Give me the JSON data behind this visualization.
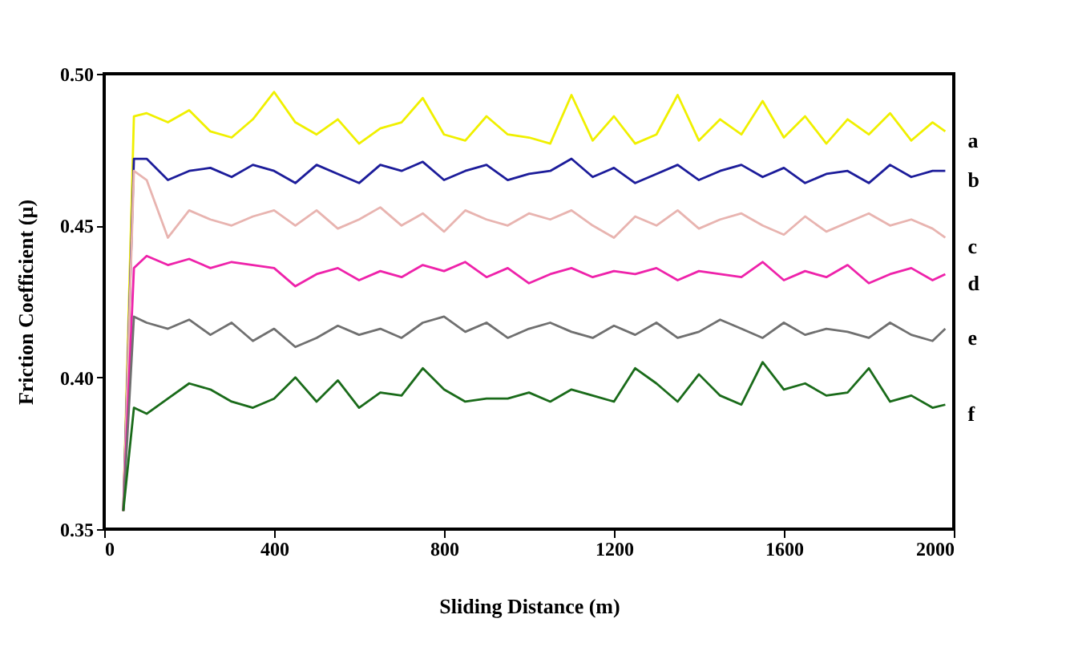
{
  "chart_data": {
    "type": "line",
    "xlabel": "Sliding Distance (m)",
    "ylabel": "Friction Coefficient (µ)",
    "xlim": [
      0,
      2000
    ],
    "ylim": [
      0.35,
      0.5
    ],
    "xticks": [
      0,
      400,
      800,
      1200,
      1600,
      2000
    ],
    "yticks": [
      0.35,
      {
        "value": 0.4,
        "label": "0.40"
      },
      0.45,
      {
        "value": 0.5,
        "label": "0.50"
      }
    ],
    "grid": false,
    "legend": false,
    "marker": "none",
    "line_style": "solid",
    "x": [
      45,
      70,
      100,
      150,
      200,
      250,
      300,
      350,
      400,
      450,
      500,
      550,
      600,
      650,
      700,
      750,
      800,
      850,
      900,
      950,
      1000,
      1050,
      1100,
      1150,
      1200,
      1250,
      1300,
      1350,
      1400,
      1450,
      1500,
      1550,
      1600,
      1650,
      1700,
      1750,
      1800,
      1850,
      1900,
      1950,
      1980
    ],
    "series": [
      {
        "name": "a",
        "color": "#f0f000",
        "values": [
          0.356,
          0.486,
          0.487,
          0.484,
          0.488,
          0.481,
          0.479,
          0.485,
          0.494,
          0.484,
          0.48,
          0.485,
          0.477,
          0.482,
          0.484,
          0.492,
          0.48,
          0.478,
          0.486,
          0.48,
          0.479,
          0.477,
          0.493,
          0.478,
          0.486,
          0.477,
          0.48,
          0.493,
          0.478,
          0.485,
          0.48,
          0.491,
          0.479,
          0.486,
          0.477,
          0.485,
          0.48,
          0.487,
          0.478,
          0.484,
          0.481
        ]
      },
      {
        "name": "b",
        "color": "#1c1c9a",
        "values": [
          0.356,
          0.472,
          0.472,
          0.465,
          0.468,
          0.469,
          0.466,
          0.47,
          0.468,
          0.464,
          0.47,
          0.467,
          0.464,
          0.47,
          0.468,
          0.471,
          0.465,
          0.468,
          0.47,
          0.465,
          0.467,
          0.468,
          0.472,
          0.466,
          0.469,
          0.464,
          0.467,
          0.47,
          0.465,
          0.468,
          0.47,
          0.466,
          0.469,
          0.464,
          0.467,
          0.468,
          0.464,
          0.47,
          0.466,
          0.468,
          0.468
        ]
      },
      {
        "name": "c",
        "color": "#e8b4b0",
        "values": [
          0.356,
          0.468,
          0.465,
          0.446,
          0.455,
          0.452,
          0.45,
          0.453,
          0.455,
          0.45,
          0.455,
          0.449,
          0.452,
          0.456,
          0.45,
          0.454,
          0.448,
          0.455,
          0.452,
          0.45,
          0.454,
          0.452,
          0.455,
          0.45,
          0.446,
          0.453,
          0.45,
          0.455,
          0.449,
          0.452,
          0.454,
          0.45,
          0.447,
          0.453,
          0.448,
          0.451,
          0.454,
          0.45,
          0.452,
          0.449,
          0.446
        ]
      },
      {
        "name": "d",
        "color": "#ee22aa",
        "values": [
          0.356,
          0.436,
          0.44,
          0.437,
          0.439,
          0.436,
          0.438,
          0.437,
          0.436,
          0.43,
          0.434,
          0.436,
          0.432,
          0.435,
          0.433,
          0.437,
          0.435,
          0.438,
          0.433,
          0.436,
          0.431,
          0.434,
          0.436,
          0.433,
          0.435,
          0.434,
          0.436,
          0.432,
          0.435,
          0.434,
          0.433,
          0.438,
          0.432,
          0.435,
          0.433,
          0.437,
          0.431,
          0.434,
          0.436,
          0.432,
          0.434
        ]
      },
      {
        "name": "e",
        "color": "#707070",
        "values": [
          0.356,
          0.42,
          0.418,
          0.416,
          0.419,
          0.414,
          0.418,
          0.412,
          0.416,
          0.41,
          0.413,
          0.417,
          0.414,
          0.416,
          0.413,
          0.418,
          0.42,
          0.415,
          0.418,
          0.413,
          0.416,
          0.418,
          0.415,
          0.413,
          0.417,
          0.414,
          0.418,
          0.413,
          0.415,
          0.419,
          0.416,
          0.413,
          0.418,
          0.414,
          0.416,
          0.415,
          0.413,
          0.418,
          0.414,
          0.412,
          0.416
        ]
      },
      {
        "name": "f",
        "color": "#1a6b1a",
        "values": [
          0.356,
          0.39,
          0.388,
          0.393,
          0.398,
          0.396,
          0.392,
          0.39,
          0.393,
          0.4,
          0.392,
          0.399,
          0.39,
          0.395,
          0.394,
          0.403,
          0.396,
          0.392,
          0.393,
          0.393,
          0.395,
          0.392,
          0.396,
          0.394,
          0.392,
          0.403,
          0.398,
          0.392,
          0.401,
          0.394,
          0.391,
          0.405,
          0.396,
          0.398,
          0.394,
          0.395,
          0.403,
          0.392,
          0.394,
          0.39,
          0.391
        ]
      }
    ]
  }
}
